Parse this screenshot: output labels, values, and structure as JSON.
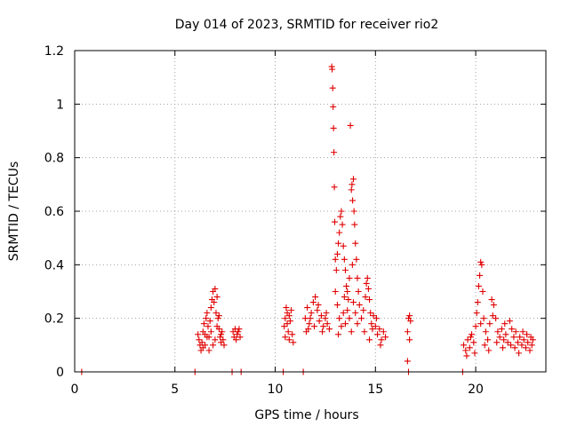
{
  "chart_data": {
    "type": "scatter",
    "title": "Day 014 of 2023, SRMTID for receiver rio2",
    "xlabel": "GPS time / hours",
    "ylabel": "SRMTID / TECUs",
    "xlim": [
      0,
      23.5
    ],
    "ylim": [
      0,
      1.2
    ],
    "xticks": [
      0,
      5,
      10,
      15,
      20
    ],
    "xtick_labels": [
      "0",
      "5",
      "10",
      "15",
      "20"
    ],
    "yticks": [
      0,
      0.2,
      0.4,
      0.6,
      0.8,
      1.0,
      1.2
    ],
    "ytick_labels": [
      "0",
      "0.2",
      "0.4",
      "0.6",
      "0.8",
      "1",
      "1.2"
    ],
    "grid": true,
    "marker": "+",
    "marker_color": "#e00000",
    "series": [
      {
        "name": "SRMTID",
        "points": [
          [
            0.35,
            0.0
          ],
          [
            6.0,
            0.0
          ],
          [
            7.85,
            0.0
          ],
          [
            8.3,
            0.0
          ],
          [
            10.4,
            0.0
          ],
          [
            11.4,
            0.0
          ],
          [
            16.65,
            0.0
          ],
          [
            19.35,
            0.0
          ],
          [
            6.15,
            0.14
          ],
          [
            6.2,
            0.12
          ],
          [
            6.25,
            0.1
          ],
          [
            6.3,
            0.08
          ],
          [
            6.35,
            0.11
          ],
          [
            6.4,
            0.15
          ],
          [
            6.45,
            0.18
          ],
          [
            6.5,
            0.14
          ],
          [
            6.55,
            0.2
          ],
          [
            6.6,
            0.22
          ],
          [
            6.65,
            0.17
          ],
          [
            6.7,
            0.13
          ],
          [
            6.75,
            0.19
          ],
          [
            6.8,
            0.24
          ],
          [
            6.85,
            0.27
          ],
          [
            6.9,
            0.3
          ],
          [
            6.95,
            0.26
          ],
          [
            7.0,
            0.31
          ],
          [
            7.05,
            0.22
          ],
          [
            7.1,
            0.28
          ],
          [
            7.15,
            0.2
          ],
          [
            7.2,
            0.16
          ],
          [
            7.25,
            0.13
          ],
          [
            7.3,
            0.11
          ],
          [
            7.35,
            0.15
          ],
          [
            7.4,
            0.12
          ],
          [
            7.45,
            0.1
          ],
          [
            6.7,
            0.08
          ],
          [
            6.9,
            0.1
          ],
          [
            7.0,
            0.12
          ],
          [
            6.6,
            0.13
          ],
          [
            6.5,
            0.1
          ],
          [
            6.8,
            0.15
          ],
          [
            7.1,
            0.17
          ],
          [
            7.2,
            0.21
          ],
          [
            6.4,
            0.09
          ],
          [
            7.3,
            0.14
          ],
          [
            7.9,
            0.15
          ],
          [
            7.95,
            0.13
          ],
          [
            8.0,
            0.16
          ],
          [
            8.05,
            0.12
          ],
          [
            8.1,
            0.14
          ],
          [
            8.15,
            0.15
          ],
          [
            8.2,
            0.16
          ],
          [
            8.25,
            0.13
          ],
          [
            10.45,
            0.17
          ],
          [
            10.5,
            0.2
          ],
          [
            10.55,
            0.24
          ],
          [
            10.6,
            0.22
          ],
          [
            10.65,
            0.15
          ],
          [
            10.7,
            0.12
          ],
          [
            10.75,
            0.19
          ],
          [
            10.8,
            0.23
          ],
          [
            10.85,
            0.14
          ],
          [
            10.9,
            0.11
          ],
          [
            10.6,
            0.18
          ],
          [
            10.7,
            0.21
          ],
          [
            10.5,
            0.13
          ],
          [
            11.5,
            0.2
          ],
          [
            11.6,
            0.24
          ],
          [
            11.7,
            0.18
          ],
          [
            11.8,
            0.22
          ],
          [
            11.9,
            0.26
          ],
          [
            12.0,
            0.28
          ],
          [
            12.1,
            0.23
          ],
          [
            12.2,
            0.19
          ],
          [
            12.3,
            0.21
          ],
          [
            12.4,
            0.17
          ],
          [
            12.5,
            0.2
          ],
          [
            12.6,
            0.18
          ],
          [
            12.7,
            0.16
          ],
          [
            11.55,
            0.15
          ],
          [
            11.75,
            0.2
          ],
          [
            11.95,
            0.17
          ],
          [
            12.15,
            0.25
          ],
          [
            12.35,
            0.15
          ],
          [
            12.55,
            0.22
          ],
          [
            11.65,
            0.16
          ],
          [
            12.82,
            1.14
          ],
          [
            12.84,
            1.13
          ],
          [
            12.87,
            1.06
          ],
          [
            12.89,
            0.99
          ],
          [
            12.91,
            0.91
          ],
          [
            12.93,
            0.82
          ],
          [
            12.95,
            0.69
          ],
          [
            12.97,
            0.56
          ],
          [
            13.0,
            0.42
          ],
          [
            13.05,
            0.38
          ],
          [
            13.1,
            0.44
          ],
          [
            13.15,
            0.48
          ],
          [
            13.2,
            0.52
          ],
          [
            13.25,
            0.58
          ],
          [
            13.3,
            0.6
          ],
          [
            13.35,
            0.55
          ],
          [
            13.4,
            0.47
          ],
          [
            13.45,
            0.42
          ],
          [
            13.5,
            0.38
          ],
          [
            13.55,
            0.32
          ],
          [
            13.6,
            0.3
          ],
          [
            13.65,
            0.27
          ],
          [
            13.7,
            0.35
          ],
          [
            13.75,
            0.92
          ],
          [
            13.8,
            0.68
          ],
          [
            13.83,
            0.7
          ],
          [
            13.86,
            0.64
          ],
          [
            13.9,
            0.72
          ],
          [
            13.93,
            0.6
          ],
          [
            13.96,
            0.55
          ],
          [
            14.0,
            0.48
          ],
          [
            14.05,
            0.42
          ],
          [
            14.1,
            0.35
          ],
          [
            14.15,
            0.3
          ],
          [
            14.2,
            0.25
          ],
          [
            13.0,
            0.3
          ],
          [
            13.1,
            0.25
          ],
          [
            13.2,
            0.2
          ],
          [
            13.3,
            0.17
          ],
          [
            13.4,
            0.22
          ],
          [
            13.5,
            0.18
          ],
          [
            13.6,
            0.23
          ],
          [
            13.7,
            0.2
          ],
          [
            13.8,
            0.15
          ],
          [
            13.9,
            0.26
          ],
          [
            14.0,
            0.22
          ],
          [
            14.1,
            0.18
          ],
          [
            13.15,
            0.14
          ],
          [
            13.45,
            0.28
          ],
          [
            13.85,
            0.4
          ],
          [
            14.3,
            0.2
          ],
          [
            14.4,
            0.23
          ],
          [
            14.5,
            0.28
          ],
          [
            14.55,
            0.33
          ],
          [
            14.6,
            0.35
          ],
          [
            14.65,
            0.31
          ],
          [
            14.7,
            0.27
          ],
          [
            14.75,
            0.22
          ],
          [
            14.8,
            0.18
          ],
          [
            14.9,
            0.21
          ],
          [
            15.0,
            0.17
          ],
          [
            15.1,
            0.14
          ],
          [
            15.2,
            0.16
          ],
          [
            15.3,
            0.12
          ],
          [
            15.4,
            0.15
          ],
          [
            15.5,
            0.13
          ],
          [
            14.45,
            0.15
          ],
          [
            14.7,
            0.12
          ],
          [
            15.05,
            0.2
          ],
          [
            15.25,
            0.1
          ],
          [
            14.85,
            0.16
          ],
          [
            16.6,
            0.04
          ],
          [
            16.65,
            0.2
          ],
          [
            16.7,
            0.21
          ],
          [
            16.75,
            0.19
          ],
          [
            16.6,
            0.15
          ],
          [
            16.7,
            0.12
          ],
          [
            19.4,
            0.1
          ],
          [
            19.5,
            0.08
          ],
          [
            19.6,
            0.12
          ],
          [
            19.7,
            0.09
          ],
          [
            19.8,
            0.14
          ],
          [
            19.9,
            0.11
          ],
          [
            20.0,
            0.17
          ],
          [
            20.05,
            0.22
          ],
          [
            20.1,
            0.26
          ],
          [
            20.15,
            0.32
          ],
          [
            20.2,
            0.36
          ],
          [
            20.25,
            0.41
          ],
          [
            20.3,
            0.4
          ],
          [
            20.35,
            0.3
          ],
          [
            20.4,
            0.2
          ],
          [
            20.5,
            0.15
          ],
          [
            20.6,
            0.12
          ],
          [
            20.7,
            0.18
          ],
          [
            20.8,
            0.27
          ],
          [
            20.9,
            0.25
          ],
          [
            21.0,
            0.2
          ],
          [
            21.1,
            0.15
          ],
          [
            21.2,
            0.13
          ],
          [
            21.3,
            0.16
          ],
          [
            21.4,
            0.12
          ],
          [
            21.5,
            0.14
          ],
          [
            21.6,
            0.11
          ],
          [
            21.7,
            0.19
          ],
          [
            21.8,
            0.16
          ],
          [
            21.9,
            0.13
          ],
          [
            22.0,
            0.15
          ],
          [
            22.1,
            0.11
          ],
          [
            22.2,
            0.13
          ],
          [
            22.3,
            0.1
          ],
          [
            22.4,
            0.12
          ],
          [
            22.5,
            0.09
          ],
          [
            22.6,
            0.11
          ],
          [
            22.7,
            0.08
          ],
          [
            22.8,
            0.1
          ],
          [
            22.85,
            0.12
          ],
          [
            19.55,
            0.06
          ],
          [
            19.75,
            0.13
          ],
          [
            19.95,
            0.07
          ],
          [
            20.45,
            0.1
          ],
          [
            20.65,
            0.08
          ],
          [
            21.05,
            0.11
          ],
          [
            21.35,
            0.09
          ],
          [
            21.75,
            0.1
          ],
          [
            22.15,
            0.07
          ],
          [
            22.55,
            0.14
          ],
          [
            22.75,
            0.13
          ],
          [
            20.25,
            0.18
          ],
          [
            20.85,
            0.21
          ],
          [
            21.45,
            0.18
          ],
          [
            21.95,
            0.09
          ],
          [
            22.35,
            0.15
          ]
        ]
      }
    ]
  }
}
